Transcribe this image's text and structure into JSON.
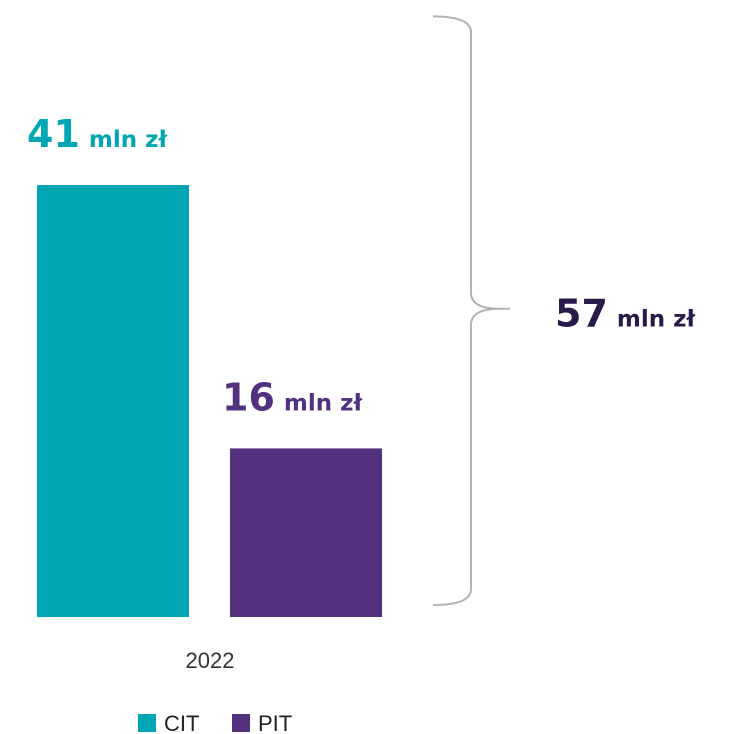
{
  "chart_data": {
    "type": "bar",
    "categories": [
      "2022"
    ],
    "series": [
      {
        "name": "CIT",
        "values": [
          41
        ],
        "color": "#00a6b3"
      },
      {
        "name": "PIT",
        "values": [
          16
        ],
        "color": "#52327f"
      }
    ],
    "data_labels": [
      {
        "number": "41",
        "unit": "mln zł"
      },
      {
        "number": "16",
        "unit": "mln zł"
      }
    ],
    "total": {
      "value": 57,
      "number": "57",
      "unit": "mln zł",
      "color": "#2a1a4a"
    },
    "ylim": [
      0,
      41
    ],
    "grid": false,
    "legend_placement": "bottom-center"
  }
}
